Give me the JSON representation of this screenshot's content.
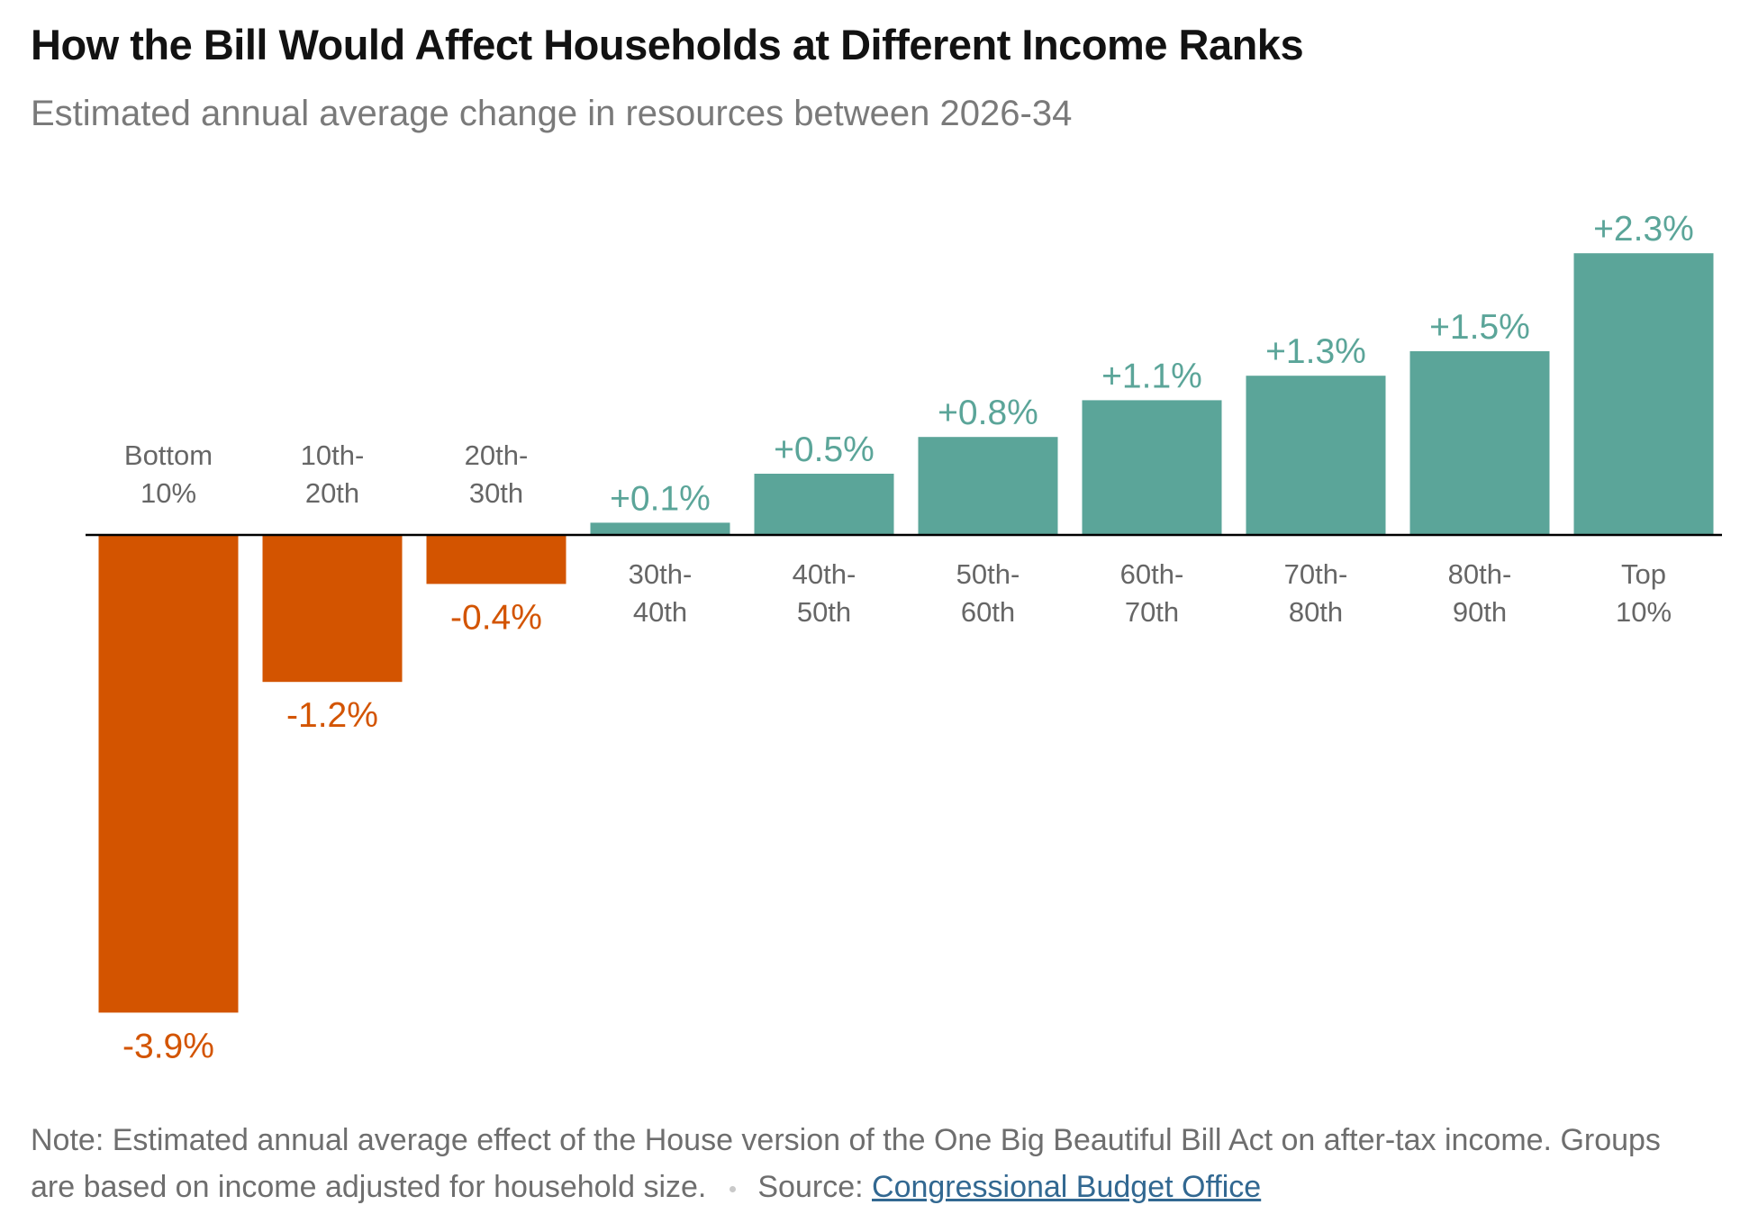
{
  "chart_data": {
    "type": "bar",
    "title": "How the Bill Would Affect Households at Different Income Ranks",
    "subtitle": "Estimated annual average change in resources between 2026-34",
    "categories": [
      "Bottom\n10%",
      "10th-\n20th",
      "20th-\n30th",
      "30th-\n40th",
      "40th-\n50th",
      "50th-\n60th",
      "60th-\n70th",
      "70th-\n80th",
      "80th-\n90th",
      "Top\n10%"
    ],
    "values": [
      -3.9,
      -1.2,
      -0.4,
      0.1,
      0.5,
      0.8,
      1.1,
      1.3,
      1.5,
      2.3
    ],
    "value_labels": [
      "-3.9%",
      "-1.2%",
      "-0.4%",
      "+0.1%",
      "+0.5%",
      "+0.8%",
      "+1.1%",
      "+1.3%",
      "+1.5%",
      "+2.3%"
    ],
    "unit": "%",
    "ylim": [
      -3.9,
      2.3
    ],
    "grid": false,
    "colors": {
      "negative": "#d35400",
      "positive": "#5ba599",
      "axis": "#000000",
      "category_label": "#666666"
    }
  },
  "footer": {
    "note": "Note: Estimated annual average effect of the House version of the One Big Beautiful Bill Act on after-tax income. Groups are based on income adjusted for household size.",
    "source_label": "Source:",
    "source_link": "Congressional Budget Office"
  }
}
